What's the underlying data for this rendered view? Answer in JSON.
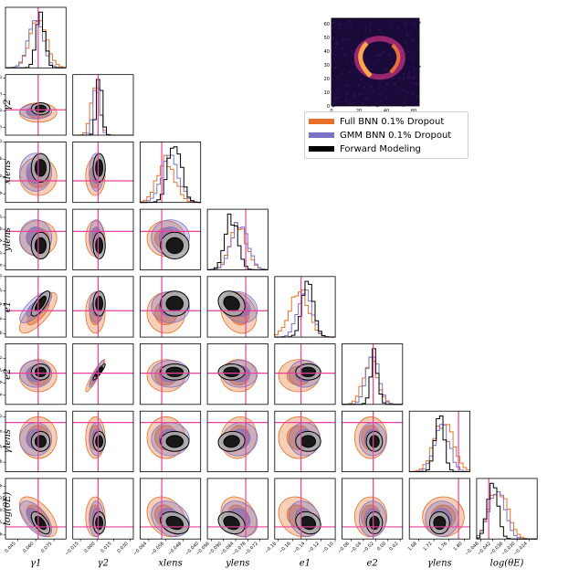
{
  "chart_data": {
    "type": "corner",
    "parameters": [
      {
        "label": "γ1",
        "sub": "1",
        "truth": 0.062,
        "range": [
          0.035,
          0.085
        ],
        "ticks": [
          "0.045",
          "0.060",
          "0.075"
        ]
      },
      {
        "label": "γ2",
        "sub": "2",
        "truth": 0.001,
        "range": [
          -0.022,
          0.033
        ],
        "ticks": [
          "−0.015",
          "0.000",
          "0.015",
          "0.030"
        ]
      },
      {
        "label": "xlens",
        "sub": "lens",
        "truth": -0.058,
        "range": [
          -0.068,
          -0.04
        ],
        "ticks": [
          "−0.064",
          "−0.056",
          "−0.048",
          "−0.040"
        ]
      },
      {
        "label": "ylens",
        "sub": "lens",
        "truth": -0.079,
        "range": [
          -0.098,
          -0.068
        ],
        "ticks": [
          "−0.096",
          "−0.090",
          "−0.084",
          "−0.078",
          "−0.072"
        ]
      },
      {
        "label": "e1",
        "sub": "1",
        "truth": -0.148,
        "range": [
          -0.185,
          -0.1
        ],
        "ticks": [
          "−0.18",
          "−0.16",
          "−0.14",
          "−0.12",
          "−0.10"
        ]
      },
      {
        "label": "e2",
        "sub": "2",
        "truth": -0.024,
        "range": [
          -0.075,
          0.024
        ],
        "ticks": [
          "−0.06",
          "−0.04",
          "−0.02",
          "0.00",
          "0.02"
        ]
      },
      {
        "label": "γlens",
        "sub": "lens",
        "truth": 1.785,
        "range": [
          1.655,
          1.815
        ],
        "ticks": [
          "1.68",
          "1.72",
          "1.76",
          "1.80"
        ]
      },
      {
        "label": "log(θE)",
        "sub": "E",
        "truth": -0.044,
        "range": [
          -0.05,
          -0.02
        ],
        "ticks": [
          "−0.048",
          "−0.042",
          "−0.036",
          "−0.030",
          "−0.024"
        ]
      }
    ],
    "ytick_labels": [
      null,
      [
        "−0.015",
        "0.000",
        "0.015",
        "0.030"
      ],
      [
        "−0.064",
        "−0.056",
        "−0.048",
        "−0.040"
      ],
      [
        "−0.096",
        "−0.090",
        "−0.084",
        "−0.078",
        "−0.072"
      ],
      [
        "−0.18",
        "−0.16",
        "−0.14",
        "−0.12",
        "−0.10"
      ],
      [
        "−0.06",
        "−0.04",
        "−0.02",
        "0.00"
      ],
      [
        "1.68",
        "1.72",
        "1.76",
        "1.80"
      ],
      [
        "−0.048",
        "−0.042",
        "−0.036",
        "−0.030",
        "−0.024"
      ]
    ],
    "series": [
      {
        "name": "Full BNN 0.1% Dropout",
        "color": "#e8712a",
        "mean": [
          0.062,
          -0.0015,
          -0.056,
          -0.0825,
          -0.151,
          -0.028,
          1.745,
          -0.039
        ],
        "sd": [
          0.007,
          0.004,
          0.004,
          0.004,
          0.013,
          0.012,
          0.025,
          0.0045
        ]
      },
      {
        "name": "GMM BNN 0.1% Dropout",
        "color": "#7b72c4",
        "mean": [
          0.06,
          -0.0005,
          -0.054,
          -0.082,
          -0.143,
          -0.025,
          1.741,
          -0.04
        ],
        "sd": [
          0.006,
          0.003,
          0.004,
          0.004,
          0.01,
          0.01,
          0.02,
          0.004
        ]
      },
      {
        "name": "Forward Modeling",
        "color": "#000000",
        "mean": [
          0.064,
          0.002,
          -0.052,
          -0.086,
          -0.138,
          -0.022,
          1.735,
          -0.042
        ],
        "sd": [
          0.0035,
          0.0025,
          0.003,
          0.003,
          0.008,
          0.006,
          0.012,
          0.0025
        ]
      }
    ],
    "truth_color": "#e8409b",
    "inset_image": {
      "type": "heatmap",
      "xticks": [
        "0",
        "20",
        "40",
        "60"
      ],
      "yticks": [
        "0",
        "10",
        "20",
        "30",
        "40",
        "50",
        "60"
      ]
    }
  }
}
